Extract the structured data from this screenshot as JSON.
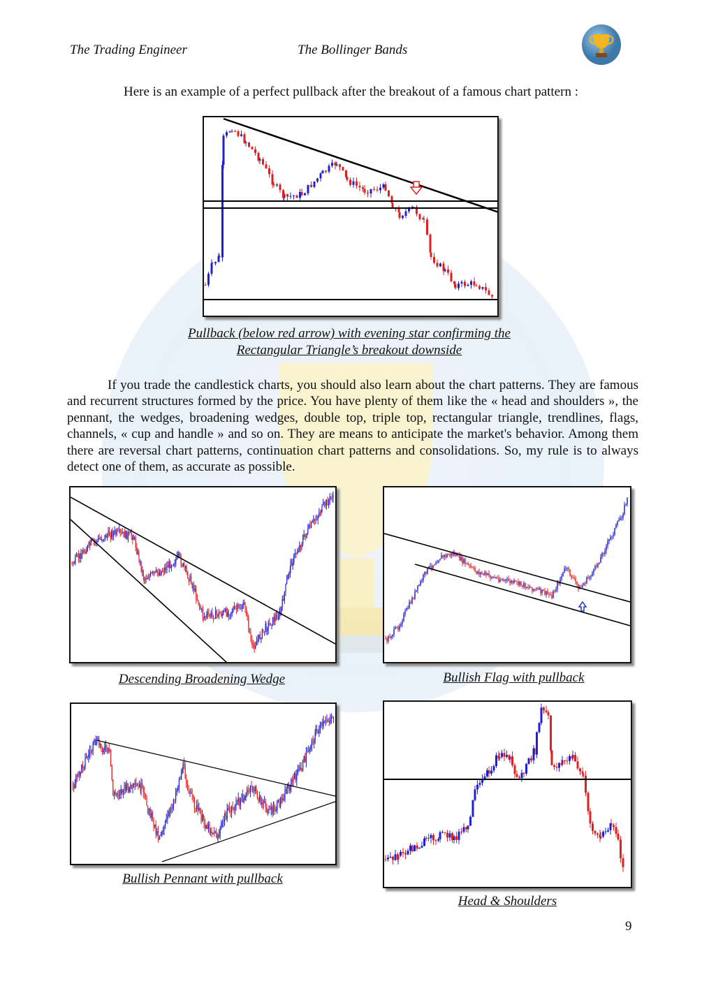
{
  "header": {
    "left": "The Trading Engineer",
    "center": "The Bollinger Bands",
    "logo": "trophy-icon"
  },
  "intro": "Here is an example of a perfect pullback after the breakout of a famous chart pattern :",
  "main_figure": {
    "caption_line1": "Pullback (below red arrow) with evening star confirming the",
    "caption_line2": "Rectangular Triangle’s breakout downside"
  },
  "paragraph": "If you trade the candlestick charts, you should also learn about the chart patterns. They are famous and recurrent structures formed by the price. You have plenty of them like the « head and shoulders », the pennant, the wedges, broadening wedges, double top, triple top, rectangular triangle, trendlines, flags, channels, « cup and handle » and so on. They are means to anticipate the market's behavior. Among them there are reversal chart patterns, continuation chart patterns and consolidations. So, my rule is to always detect one of them, as accurate as possible.",
  "figures": [
    {
      "caption": "Descending Broadening Wedge"
    },
    {
      "caption": "Bullish Flag with pullback"
    },
    {
      "caption": "Bullish Pennant with pullback"
    },
    {
      "caption": "Head & Shoulders"
    }
  ],
  "colors": {
    "bull": "#2020d0",
    "bear": "#e02020",
    "arrow_down": "#e02020",
    "arrow_up": "#2030d0"
  },
  "page_number": "9"
}
